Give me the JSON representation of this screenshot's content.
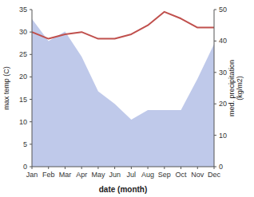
{
  "chart_data": {
    "type": "line",
    "categories": [
      "Jan",
      "Feb",
      "Mar",
      "Apr",
      "May",
      "Jun",
      "Jul",
      "Aug",
      "Sep",
      "Oct",
      "Nov",
      "Dec"
    ],
    "series": [
      {
        "type": "area",
        "axis": "y2",
        "color": "#bfc9ea",
        "values": [
          47,
          40,
          43,
          35,
          24,
          20,
          15,
          18,
          18,
          18,
          28,
          39
        ]
      },
      {
        "type": "line",
        "color": "#c0504d",
        "values": [
          30.0,
          28.5,
          29.5,
          30.0,
          28.5,
          28.5,
          29.5,
          31.5,
          34.5,
          33.0,
          31.0,
          31.0
        ]
      }
    ],
    "xlabel": "date (month)",
    "ylabel": "max temp (C)",
    "y2label": "med. precipitation\n(kg/m2)",
    "ylim": [
      0,
      35
    ],
    "yticks": [
      0,
      5,
      10,
      15,
      20,
      25,
      30,
      35
    ],
    "y2lim": [
      0,
      50
    ],
    "y2ticks": [
      0,
      10,
      20,
      30,
      40,
      50
    ],
    "grid": false
  }
}
